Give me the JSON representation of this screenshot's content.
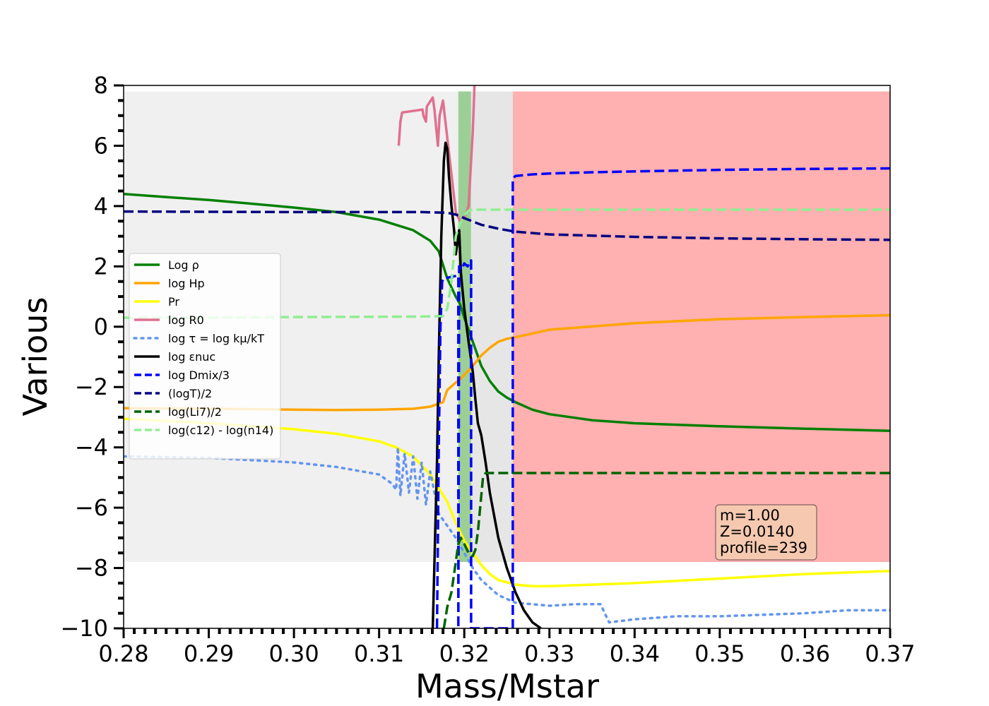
{
  "chart_data": {
    "type": "line",
    "xlabel": "Mass/Mstar",
    "ylabel": "Various",
    "xlim": [
      0.28,
      0.37
    ],
    "ylim": [
      -10,
      8
    ],
    "x_ticks": [
      "0.28",
      "0.29",
      "0.30",
      "0.31",
      "0.32",
      "0.33",
      "0.34",
      "0.35",
      "0.36",
      "0.37"
    ],
    "y_ticks": [
      "−10",
      "−8",
      "−6",
      "−4",
      "−2",
      "0",
      "2",
      "4",
      "6",
      "8"
    ],
    "y_tick_values": [
      -10,
      -8,
      -6,
      -4,
      -2,
      0,
      2,
      4,
      6,
      8
    ],
    "grid": false,
    "legend_position": "center-left",
    "regions": [
      {
        "x0": 0.28,
        "x1": 0.3193,
        "y0": -7.8,
        "y1": 7.8,
        "color": "#f0f0f0",
        "opacity": 1
      },
      {
        "x0": 0.3193,
        "x1": 0.3208,
        "y0": -7.8,
        "y1": 7.8,
        "color": "#9ccf95",
        "opacity": 1
      },
      {
        "x0": 0.3208,
        "x1": 0.3257,
        "y0": -7.8,
        "y1": 7.8,
        "color": "#e6e6e6",
        "opacity": 1
      },
      {
        "x0": 0.3257,
        "x1": 0.37,
        "y0": -7.8,
        "y1": 7.8,
        "color": "#ffb0b0",
        "opacity": 1
      }
    ],
    "series": [
      {
        "name": "Log ρ",
        "color": "#008000",
        "style": "solid",
        "x": [
          0.28,
          0.285,
          0.29,
          0.295,
          0.3,
          0.305,
          0.31,
          0.314,
          0.316,
          0.317,
          0.318,
          0.319,
          0.3195,
          0.32,
          0.321,
          0.322,
          0.323,
          0.324,
          0.325,
          0.326,
          0.328,
          0.33,
          0.335,
          0.34,
          0.35,
          0.36,
          0.37
        ],
        "y": [
          4.4,
          4.3,
          4.2,
          4.08,
          3.95,
          3.8,
          3.55,
          3.2,
          2.85,
          2.5,
          1.6,
          1.0,
          0.75,
          0.3,
          -0.5,
          -1.3,
          -1.8,
          -2.15,
          -2.35,
          -2.5,
          -2.75,
          -2.9,
          -3.1,
          -3.2,
          -3.3,
          -3.38,
          -3.45
        ]
      },
      {
        "name": "log Hp",
        "color": "#ffa500",
        "style": "solid",
        "x": [
          0.28,
          0.29,
          0.3,
          0.305,
          0.31,
          0.314,
          0.316,
          0.3175,
          0.318,
          0.319,
          0.3195,
          0.32,
          0.321,
          0.322,
          0.323,
          0.324,
          0.325,
          0.326,
          0.33,
          0.34,
          0.35,
          0.36,
          0.37
        ],
        "y": [
          -2.7,
          -2.72,
          -2.75,
          -2.76,
          -2.75,
          -2.72,
          -2.65,
          -2.5,
          -2.1,
          -1.85,
          -1.75,
          -1.6,
          -1.3,
          -0.95,
          -0.7,
          -0.5,
          -0.4,
          -0.35,
          -0.1,
          0.12,
          0.25,
          0.32,
          0.38
        ]
      },
      {
        "name": "Pr",
        "color": "#ffff00",
        "style": "solid",
        "x": [
          0.28,
          0.29,
          0.3,
          0.305,
          0.31,
          0.312,
          0.314,
          0.316,
          0.318,
          0.319,
          0.32,
          0.321,
          0.322,
          0.323,
          0.324,
          0.326,
          0.328,
          0.33,
          0.34,
          0.35,
          0.36,
          0.37
        ],
        "y": [
          -3.05,
          -3.2,
          -3.4,
          -3.55,
          -3.8,
          -4.0,
          -4.3,
          -4.9,
          -5.8,
          -6.5,
          -7.1,
          -7.5,
          -7.9,
          -8.2,
          -8.4,
          -8.55,
          -8.6,
          -8.6,
          -8.5,
          -8.35,
          -8.2,
          -8.1
        ]
      },
      {
        "name": "log R0",
        "color": "#e07090",
        "style": "solid",
        "x": [
          0.3123,
          0.3124,
          0.3125,
          0.3127,
          0.3151,
          0.3152,
          0.3155,
          0.3156,
          0.3163,
          0.3165,
          0.3167,
          0.3169,
          0.3171,
          0.3175,
          0.319,
          0.3195,
          0.32,
          0.3205,
          0.321,
          0.3212
        ],
        "y": [
          6.0,
          6.4,
          6.8,
          7.1,
          7.2,
          7.0,
          6.8,
          7.3,
          7.6,
          7.2,
          6.6,
          6.0,
          7.0,
          7.5,
          3.8,
          3.5,
          3.6,
          4.0,
          6.5,
          8.0
        ]
      },
      {
        "name": "log τ =  log kμ/kT",
        "color": "#6495ed",
        "style": "dotted",
        "x": [
          0.28,
          0.29,
          0.3,
          0.305,
          0.31,
          0.3115,
          0.312,
          0.3122,
          0.3125,
          0.313,
          0.3135,
          0.314,
          0.3145,
          0.315,
          0.3155,
          0.316,
          0.317,
          0.318,
          0.319,
          0.32,
          0.321,
          0.322,
          0.324,
          0.326,
          0.328,
          0.33,
          0.333,
          0.336,
          0.337,
          0.34,
          0.345,
          0.35,
          0.355,
          0.36,
          0.365,
          0.37
        ],
        "y": [
          -4.3,
          -4.35,
          -4.5,
          -4.65,
          -4.9,
          -5.2,
          -5.4,
          -4.0,
          -5.6,
          -4.2,
          -5.5,
          -4.3,
          -5.7,
          -4.5,
          -5.9,
          -4.8,
          -6.2,
          -6.6,
          -7.0,
          -7.5,
          -8.0,
          -8.4,
          -8.9,
          -9.15,
          -9.2,
          -9.25,
          -9.2,
          -9.2,
          -9.8,
          -9.7,
          -9.6,
          -9.6,
          -9.55,
          -9.5,
          -9.4,
          -9.4
        ]
      },
      {
        "name": "log εnuc",
        "color": "#000000",
        "style": "solid",
        "x": [
          0.3163,
          0.3168,
          0.317,
          0.3173,
          0.3176,
          0.3178,
          0.318,
          0.3182,
          0.3185,
          0.3188,
          0.319,
          0.3192,
          0.3194,
          0.3196,
          0.32,
          0.3205,
          0.321,
          0.3213,
          0.3216,
          0.322,
          0.3225,
          0.323,
          0.324,
          0.325,
          0.326,
          0.327,
          0.328,
          0.329
        ],
        "y": [
          -10,
          -4.5,
          -1.0,
          3.0,
          5.5,
          6.1,
          5.9,
          5.0,
          4.0,
          3.2,
          2.4,
          2.8,
          3.2,
          1.8,
          0.6,
          -0.5,
          -1.5,
          -2.4,
          -3.2,
          -3.6,
          -4.5,
          -5.5,
          -7.0,
          -8.0,
          -8.8,
          -9.4,
          -9.8,
          -10.0
        ]
      },
      {
        "name": "log Dmix/3",
        "color": "#0000ff",
        "style": "dashed",
        "x": [
          0.3168,
          0.317,
          0.3172,
          0.3174,
          0.3176,
          0.3193,
          0.3193,
          0.3194,
          0.3197,
          0.32,
          0.3204,
          0.3208,
          0.3208,
          0.3257,
          0.3257,
          0.326,
          0.328,
          0.33,
          0.335,
          0.34,
          0.35,
          0.36,
          0.37
        ],
        "y": [
          -10,
          -4.0,
          0.0,
          1.5,
          1.6,
          1.7,
          -10,
          2.0,
          1.9,
          2.1,
          2.0,
          2.2,
          -10,
          -10,
          4.9,
          5.0,
          5.05,
          5.08,
          5.12,
          5.15,
          5.2,
          5.23,
          5.25
        ]
      },
      {
        "name": "(logT)/2",
        "color": "#000080",
        "style": "dashed",
        "x": [
          0.28,
          0.29,
          0.3,
          0.31,
          0.315,
          0.318,
          0.319,
          0.32,
          0.322,
          0.324,
          0.326,
          0.33,
          0.34,
          0.35,
          0.36,
          0.37
        ],
        "y": [
          3.82,
          3.81,
          3.8,
          3.8,
          3.8,
          3.78,
          3.72,
          3.6,
          3.38,
          3.25,
          3.15,
          3.06,
          2.98,
          2.93,
          2.9,
          2.88
        ]
      },
      {
        "name": "log(Li7)/2",
        "color": "#006400",
        "style": "dashed",
        "x": [
          0.3176,
          0.318,
          0.3185,
          0.319,
          0.3193,
          0.3196,
          0.32,
          0.3205,
          0.321,
          0.3213,
          0.3216,
          0.322,
          0.3222,
          0.3225,
          0.326,
          0.33,
          0.34,
          0.35,
          0.36,
          0.37
        ],
        "y": [
          -10,
          -9.3,
          -8.8,
          -7.8,
          -7.2,
          -7.0,
          -7.2,
          -7.5,
          -7.6,
          -7.4,
          -6.8,
          -5.6,
          -5.0,
          -4.85,
          -4.85,
          -4.85,
          -4.85,
          -4.85,
          -4.85,
          -4.85
        ]
      },
      {
        "name": "log(c12) - log(n14)",
        "color": "#90ee90",
        "style": "dashed",
        "x": [
          0.28,
          0.29,
          0.3,
          0.31,
          0.315,
          0.3175,
          0.318,
          0.3185,
          0.319,
          0.3195,
          0.32,
          0.3205,
          0.321,
          0.322,
          0.326,
          0.33,
          0.34,
          0.35,
          0.36,
          0.37
        ],
        "y": [
          0.3,
          0.3,
          0.32,
          0.33,
          0.34,
          0.35,
          0.6,
          1.5,
          3.0,
          3.4,
          3.7,
          3.85,
          3.88,
          3.88,
          3.88,
          3.88,
          3.88,
          3.88,
          3.88,
          3.88
        ]
      }
    ],
    "annotation": {
      "lines": [
        "m=1.00",
        "Z=0.0140",
        "profile=239"
      ]
    }
  }
}
